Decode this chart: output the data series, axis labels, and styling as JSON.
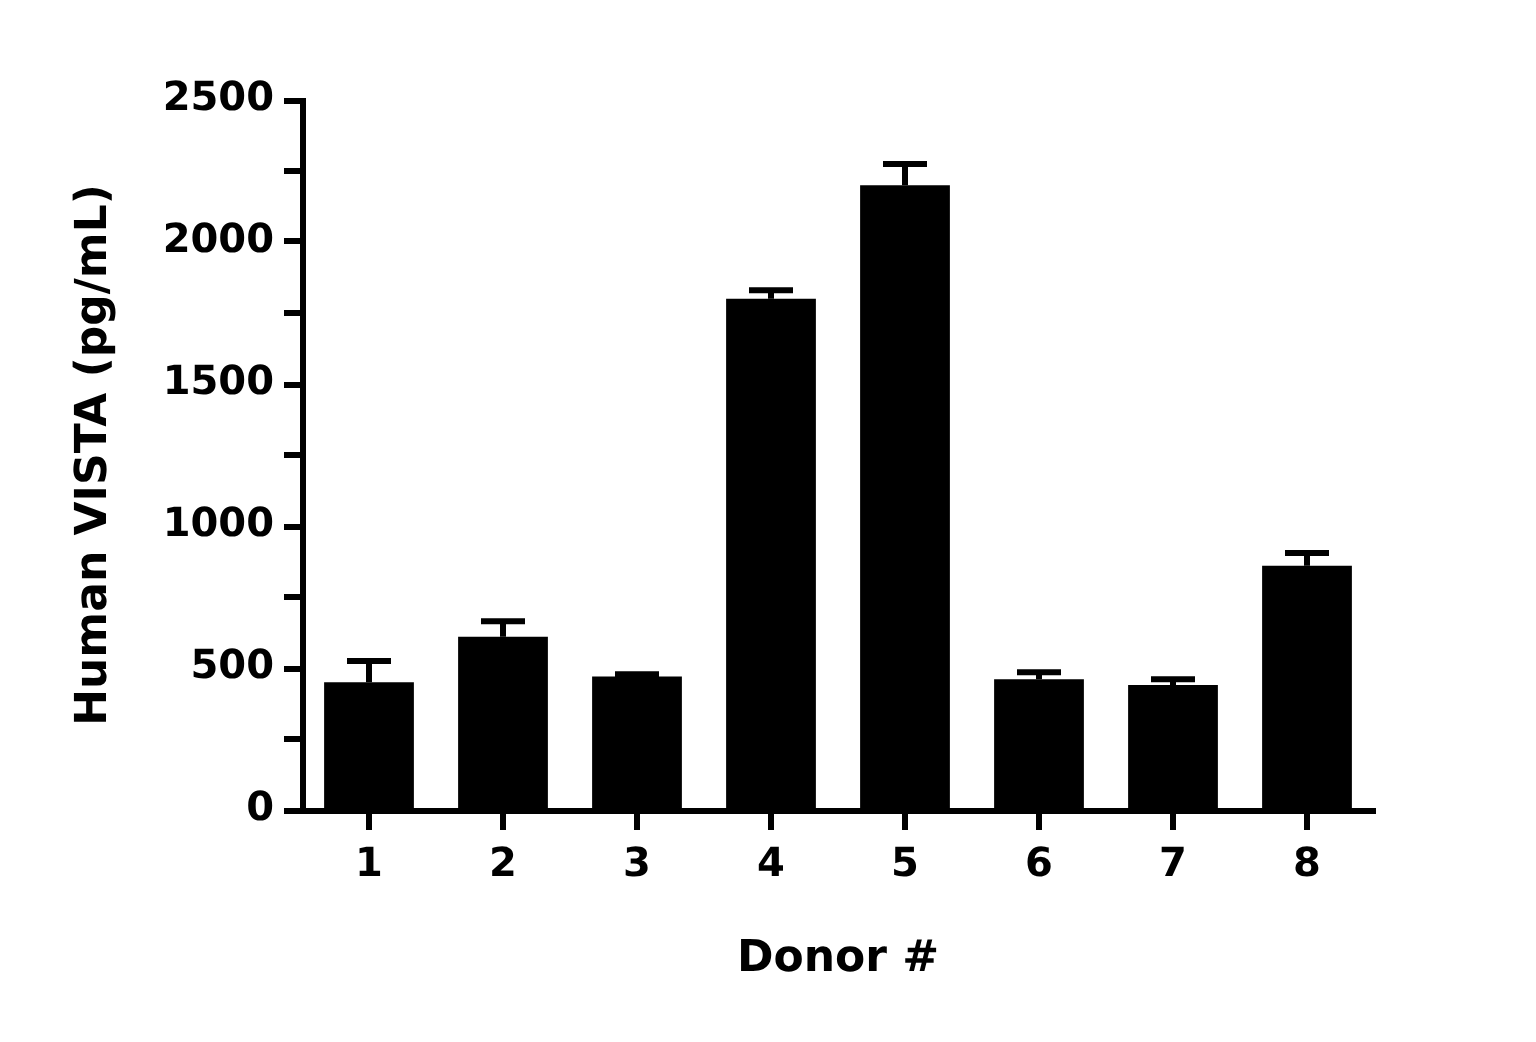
{
  "chart_data": {
    "type": "bar",
    "xlabel": "Donor #",
    "ylabel": "Human VISTA (pg/mL)",
    "categories": [
      "1",
      "2",
      "3",
      "4",
      "5",
      "6",
      "7",
      "8"
    ],
    "values": [
      450,
      610,
      470,
      1800,
      2200,
      460,
      440,
      860
    ],
    "errors": [
      75,
      55,
      8,
      30,
      75,
      25,
      20,
      45
    ],
    "color": "#000000",
    "ylim": [
      0,
      2500
    ],
    "yticks": [
      0,
      {
        "value": 250,
        "label": null
      },
      500,
      {
        "value": 750,
        "label": null
      },
      1000,
      {
        "value": 1250,
        "label": null
      },
      1500,
      {
        "value": 1750,
        "label": null
      },
      2000,
      {
        "value": 2250,
        "label": null
      },
      2500
    ],
    "grid": false,
    "legend": false
  }
}
